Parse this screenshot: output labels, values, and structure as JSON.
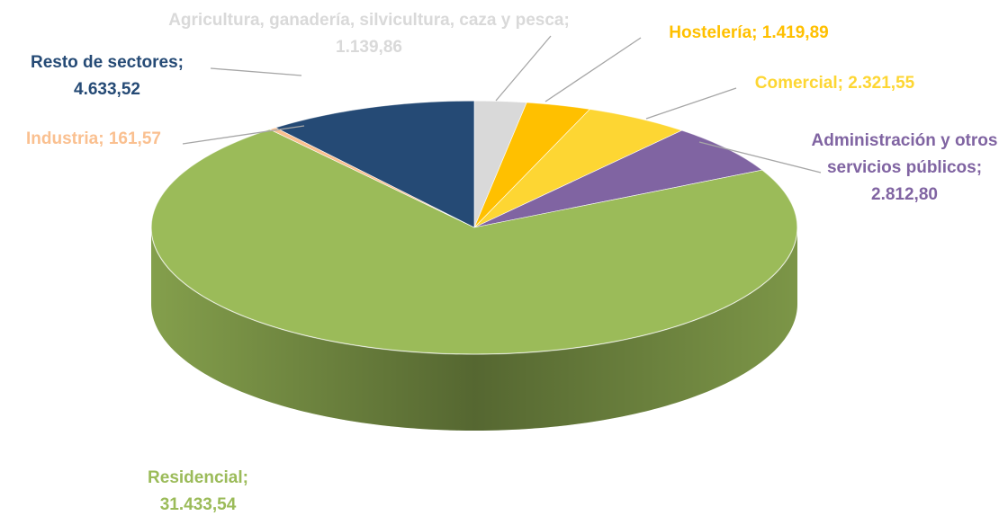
{
  "chart_data": {
    "type": "pie3d",
    "categories": [
      "Agricultura, ganadería, silvicultura, caza y pesca",
      "Hostelería",
      "Comercial",
      "Administración y otros servicios públicos",
      "Residencial",
      "Industria",
      "Resto  de sectores"
    ],
    "values": [
      1139.86,
      1419.89,
      2321.55,
      2812.8,
      31433.54,
      161.57,
      4633.52
    ],
    "value_labels": [
      "1.139,86",
      "1.419,89",
      "2.321,55",
      "2.812,80",
      "31.433,54",
      "161,57",
      "4.633,52"
    ],
    "label_separator": "; ",
    "colors": [
      "#d9d9d9",
      "#ffc000",
      "#fdd633",
      "#8064a2",
      "#9bbb59",
      "#fac090",
      "#254a75"
    ]
  }
}
